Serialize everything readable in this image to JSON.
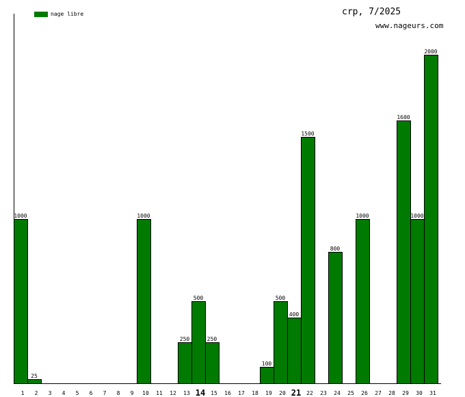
{
  "chart_data": {
    "type": "bar",
    "title": "crp, 7/2025",
    "subtitle": "www.nageurs.com",
    "legend_position": "top-left",
    "bar_color": "#007a00",
    "series": [
      {
        "name": "nage libre",
        "values": [
          1000,
          25,
          0,
          0,
          0,
          0,
          0,
          0,
          0,
          1000,
          0,
          0,
          250,
          500,
          250,
          0,
          0,
          0,
          100,
          500,
          400,
          1500,
          0,
          800,
          0,
          1000,
          0,
          0,
          1600,
          1000,
          2000
        ]
      }
    ],
    "categories": [
      "1",
      "2",
      "3",
      "4",
      "5",
      "6",
      "7",
      "8",
      "9",
      "10",
      "11",
      "12",
      "13",
      "14",
      "15",
      "16",
      "17",
      "18",
      "19",
      "20",
      "21",
      "22",
      "23",
      "24",
      "25",
      "26",
      "27",
      "28",
      "29",
      "30",
      "31"
    ],
    "bold_categories": [
      "14",
      "21"
    ],
    "ylim": [
      0,
      2000
    ],
    "grid": false
  }
}
